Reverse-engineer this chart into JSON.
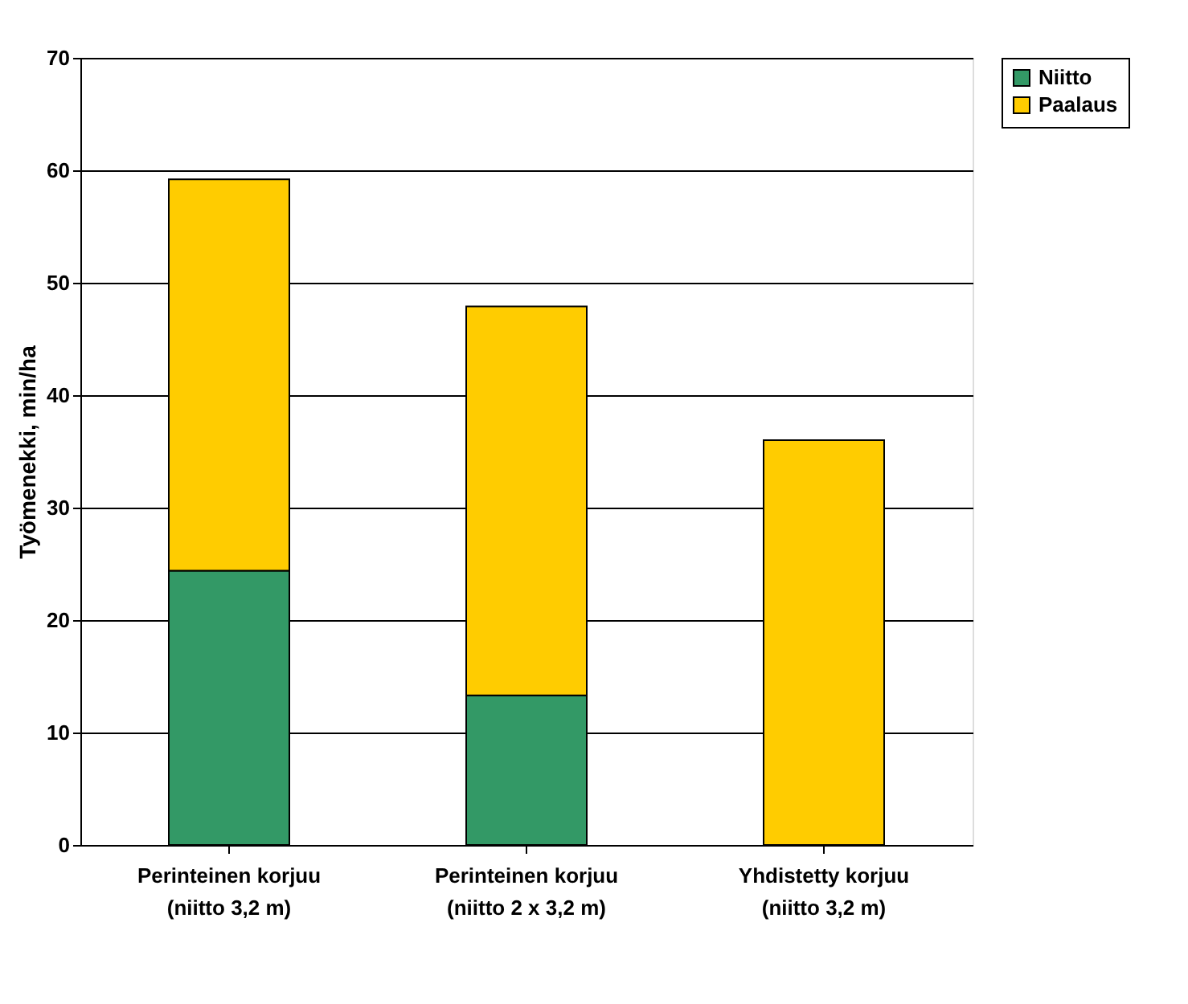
{
  "chart_data": {
    "type": "bar",
    "stacked": true,
    "ylabel": "Työmenekki, min/ha",
    "categories": [
      "Perinteinen korjuu\n(niitto 3,2 m)",
      "Perinteinen korjuu\n(niitto 2 x 3,2 m)",
      "Yhdistetty korjuu\n(niitto 3,2 m)"
    ],
    "series": [
      {
        "name": "Niitto",
        "color": "#339966",
        "values": [
          24.4,
          13.3,
          null
        ]
      },
      {
        "name": "Paalaus",
        "color": "#ffcc00",
        "values": [
          34.8,
          34.6,
          36.0
        ]
      }
    ],
    "ylim": [
      0,
      70
    ],
    "yticks": [
      0,
      10,
      20,
      30,
      40,
      50,
      60,
      70
    ],
    "grid": "y",
    "legend": "right"
  }
}
